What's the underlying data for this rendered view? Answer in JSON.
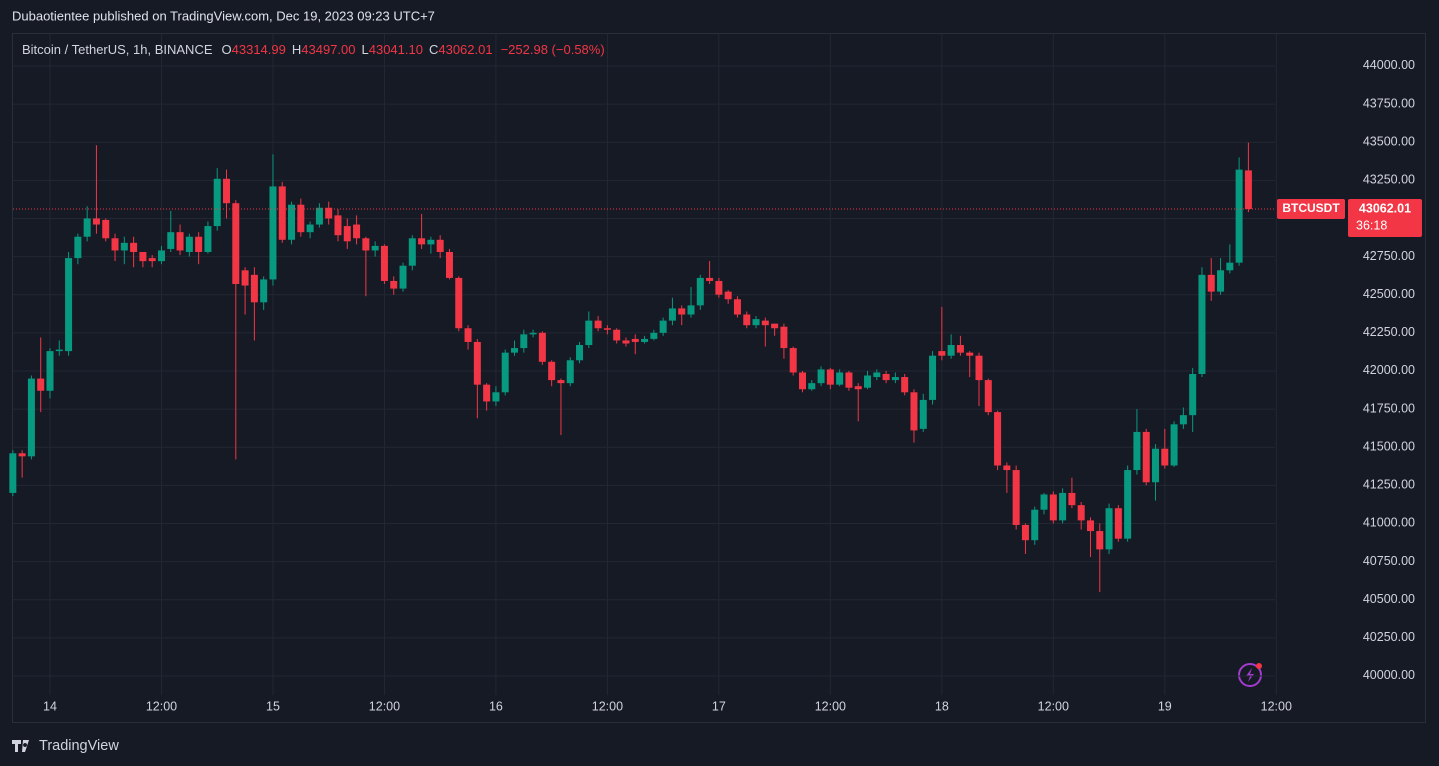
{
  "header": {
    "publisher": "Dubaotientee published on TradingView.com, Dec 19, 2023 09:23 UTC+7"
  },
  "footer": {
    "brand": "TradingView"
  },
  "chart_data": {
    "type": "candlestick",
    "title": "Bitcoin / TetherUS, 1h, BINANCE",
    "legend": {
      "items": [
        {
          "label": "O",
          "value": "43314.99"
        },
        {
          "label": "H",
          "value": "43497.00"
        },
        {
          "label": "L",
          "value": "43041.10"
        },
        {
          "label": "C",
          "value": "43062.01"
        }
      ],
      "change": "−252.98 (−0.58%)"
    },
    "last_price": {
      "symbol": "BTCUSDT",
      "price": "43062.01",
      "countdown": "36:18"
    },
    "up_color": "#089981",
    "down_color": "#f23645",
    "grid": true,
    "categories": [
      null,
      null,
      null,
      null,
      "14",
      null,
      null,
      null,
      null,
      null,
      null,
      null,
      null,
      null,
      null,
      null,
      "12:00",
      null,
      null,
      null,
      null,
      null,
      null,
      null,
      null,
      null,
      null,
      null,
      "15",
      null,
      null,
      null,
      null,
      null,
      null,
      null,
      null,
      null,
      null,
      null,
      "12:00",
      null,
      null,
      null,
      null,
      null,
      null,
      null,
      null,
      null,
      null,
      null,
      "16",
      null,
      null,
      null,
      null,
      null,
      null,
      null,
      null,
      null,
      null,
      null,
      "12:00",
      null,
      null,
      null,
      null,
      null,
      null,
      null,
      null,
      null,
      null,
      null,
      "17",
      null,
      null,
      null,
      null,
      null,
      null,
      null,
      null,
      null,
      null,
      null,
      "12:00",
      null,
      null,
      null,
      null,
      null,
      null,
      null,
      null,
      null,
      null,
      null,
      "18",
      null,
      null,
      null,
      null,
      null,
      null,
      null,
      null,
      null,
      null,
      null,
      "12:00",
      null,
      null,
      null,
      null,
      null,
      null,
      null,
      null,
      null,
      null,
      null,
      "19",
      null,
      null,
      null,
      null,
      null,
      null,
      null,
      null,
      null,
      null,
      null,
      "12:00"
    ],
    "open": [
      41200,
      41460,
      41440,
      41950,
      41870,
      42130,
      42130,
      42740,
      42880,
      43000,
      42990,
      42870,
      42790,
      42840,
      42780,
      42740,
      42720,
      42800,
      42910,
      42780,
      42880,
      42780,
      42950,
      43260,
      43100,
      42660,
      42630,
      42450,
      42600,
      43210,
      42860,
      43090,
      42910,
      42960,
      43070,
      43020,
      42950,
      42960,
      42870,
      42790,
      42820,
      42590,
      42540,
      42690,
      42870,
      42830,
      42860,
      42780,
      42610,
      42280,
      42190,
      41910,
      41800,
      41860,
      42120,
      42150,
      42240,
      42250,
      42060,
      41940,
      41920,
      42070,
      42170,
      42330,
      42280,
      42270,
      42200,
      42210,
      42190,
      42210,
      42250,
      42330,
      42410,
      42370,
      42430,
      42610,
      42590,
      42520,
      42470,
      42370,
      42300,
      42330,
      42310,
      42290,
      42150,
      41990,
      41880,
      41920,
      42010,
      41910,
      41990,
      41900,
      41890,
      41960,
      41980,
      41940,
      41960,
      41860,
      41620,
      41810,
      42130,
      42100,
      42170,
      42120,
      42100,
      41940,
      41730,
      41380,
      41350,
      40990,
      40890,
      41090,
      41190,
      41020,
      41200,
      41120,
      41020,
      40950,
      40830,
      41100,
      40900,
      41350,
      41600,
      41270,
      41490,
      41380,
      41650,
      41710,
      41980,
      42630,
      42520,
      42660,
      42710,
      43314.99,
      null,
      null,
      null
    ],
    "high": [
      41480,
      41480,
      41970,
      42220,
      42150,
      42200,
      42780,
      42900,
      43080,
      43480,
      43000,
      42900,
      42880,
      42880,
      42780,
      42760,
      42820,
      43050,
      42960,
      42900,
      42910,
      42980,
      43330,
      43320,
      43120,
      42680,
      42680,
      42620,
      43420,
      43240,
      43110,
      43130,
      42980,
      43100,
      43110,
      43060,
      43000,
      43020,
      42880,
      42850,
      42830,
      42620,
      42710,
      42890,
      43030,
      42880,
      42890,
      42800,
      42620,
      42300,
      42210,
      41920,
      41900,
      42140,
      42200,
      42270,
      42270,
      42260,
      42070,
      41950,
      42090,
      42190,
      42390,
      42360,
      42300,
      42280,
      42220,
      42240,
      42230,
      42270,
      42350,
      42480,
      42430,
      42550,
      42630,
      42720,
      42610,
      42530,
      42490,
      42390,
      42360,
      42350,
      42310,
      42310,
      42160,
      42000,
      41940,
      42030,
      42020,
      42010,
      42000,
      41920,
      42000,
      42010,
      42000,
      41990,
      41980,
      41880,
      41850,
      42130,
      42420,
      42240,
      42230,
      42130,
      42120,
      41950,
      41740,
      41400,
      41380,
      41000,
      41110,
      41200,
      41210,
      41230,
      41300,
      41140,
      41040,
      41000,
      41130,
      41120,
      41380,
      41750,
      41620,
      41520,
      41620,
      41670,
      41760,
      42020,
      42680,
      42740,
      42740,
      42830,
      43400,
      43497,
      null,
      null,
      null
    ],
    "low": [
      41180,
      41300,
      41420,
      41730,
      41820,
      42100,
      42100,
      42700,
      42850,
      42900,
      42850,
      42720,
      42700,
      42680,
      42680,
      42680,
      42700,
      42780,
      42760,
      42750,
      42700,
      42770,
      42920,
      43000,
      41420,
      42370,
      42200,
      42400,
      42560,
      42840,
      42830,
      42880,
      42870,
      42940,
      42960,
      42850,
      42800,
      42830,
      42490,
      42750,
      42570,
      42500,
      42520,
      42660,
      42800,
      42770,
      42740,
      42600,
      42260,
      42140,
      41690,
      41740,
      41770,
      41840,
      42100,
      42120,
      42220,
      42040,
      41900,
      41580,
      41900,
      42050,
      42150,
      42260,
      42240,
      42180,
      42160,
      42110,
      42180,
      42200,
      42230,
      42300,
      42300,
      42350,
      42400,
      42570,
      42480,
      42440,
      42350,
      42280,
      42280,
      42160,
      42230,
      42080,
      41970,
      41860,
      41870,
      41900,
      41880,
      41900,
      41870,
      41670,
      41880,
      41940,
      41920,
      41920,
      41840,
      41530,
      41600,
      41780,
      42070,
      42080,
      42100,
      41960,
      41770,
      41710,
      41350,
      41200,
      40960,
      40800,
      40860,
      41060,
      41000,
      41000,
      41100,
      40960,
      40780,
      40550,
      40800,
      40880,
      40880,
      41320,
      41250,
      41150,
      41360,
      41370,
      41620,
      41600,
      41960,
      42460,
      42500,
      42640,
      42690,
      43041.1,
      null,
      null,
      null
    ],
    "close": [
      41460,
      41440,
      41950,
      41870,
      42130,
      42140,
      42740,
      42880,
      43000,
      42960,
      42870,
      42790,
      42840,
      42780,
      42720,
      42720,
      42790,
      42910,
      42790,
      42880,
      42780,
      42950,
      43260,
      43100,
      42570,
      42560,
      42450,
      42600,
      43210,
      42860,
      43090,
      42910,
      42960,
      43070,
      43000,
      42890,
      42850,
      42870,
      42790,
      42820,
      42590,
      42540,
      42690,
      42870,
      42830,
      42860,
      42780,
      42610,
      42280,
      42190,
      41910,
      41800,
      41860,
      42120,
      42150,
      42240,
      42250,
      42060,
      41940,
      41920,
      42070,
      42170,
      42330,
      42280,
      42270,
      42200,
      42180,
      42190,
      42210,
      42250,
      42330,
      42410,
      42370,
      42430,
      42610,
      42590,
      42500,
      42470,
      42370,
      42300,
      42340,
      42300,
      42280,
      42150,
      41990,
      41880,
      41920,
      42010,
      41910,
      41990,
      41890,
      41880,
      41970,
      41990,
      41940,
      41960,
      41860,
      41610,
      41810,
      42100,
      42100,
      42170,
      42120,
      42100,
      41940,
      41730,
      41380,
      41350,
      40990,
      40890,
      41090,
      41190,
      41020,
      41200,
      41120,
      41020,
      40950,
      40830,
      41100,
      40900,
      41350,
      41600,
      41270,
      41490,
      41380,
      41650,
      41710,
      41980,
      42630,
      42520,
      42660,
      42710,
      43320,
      43062.01,
      null,
      null,
      null
    ],
    "ylim": [
      39875,
      44216
    ],
    "yticks": [
      {
        "value": 40000,
        "label": "40000.00"
      },
      {
        "value": 40250,
        "label": "40250.00"
      },
      {
        "value": 40500,
        "label": "40500.00"
      },
      {
        "value": 40750,
        "label": "40750.00"
      },
      {
        "value": 41000,
        "label": "41000.00"
      },
      {
        "value": 41250,
        "label": "41250.00"
      },
      {
        "value": 41500,
        "label": "41500.00"
      },
      {
        "value": 41750,
        "label": "41750.00"
      },
      {
        "value": 42000,
        "label": "42000.00"
      },
      {
        "value": 42250,
        "label": "42250.00"
      },
      {
        "value": 42500,
        "label": "42500.00"
      },
      {
        "value": 42750,
        "label": "42750.00"
      },
      {
        "value": 43000,
        "label": "43000.00"
      },
      {
        "value": 43250,
        "label": "43250.00"
      },
      {
        "value": 43500,
        "label": "43500.00"
      },
      {
        "value": 43750,
        "label": "43750.00"
      },
      {
        "value": 44000,
        "label": "44000.00"
      }
    ]
  }
}
